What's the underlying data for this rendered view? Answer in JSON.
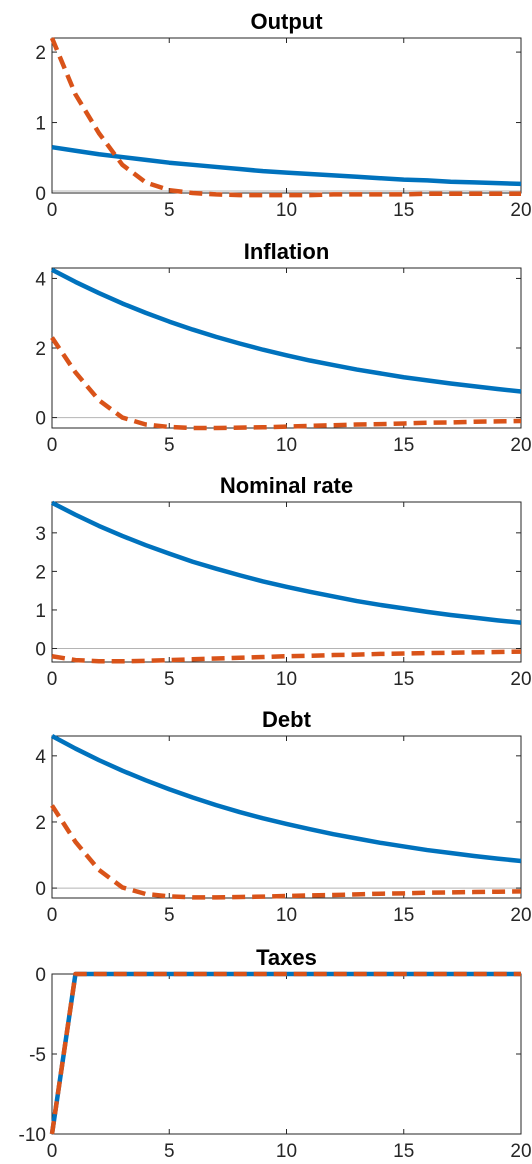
{
  "chart_data": [
    {
      "type": "line",
      "title": "Output",
      "xlabel": "",
      "ylabel": "",
      "xlim": [
        0,
        20
      ],
      "ylim": [
        0,
        2.2
      ],
      "xticks": [
        0,
        5,
        10,
        15,
        20
      ],
      "yticks": [
        0,
        1,
        2
      ],
      "zero_line": true,
      "x": [
        0,
        1,
        2,
        3,
        4,
        5,
        6,
        7,
        8,
        9,
        10,
        11,
        12,
        13,
        14,
        15,
        16,
        17,
        18,
        19,
        20
      ],
      "series": [
        {
          "style": "solid",
          "color": "#0072BD",
          "values": [
            0.65,
            0.6,
            0.55,
            0.51,
            0.47,
            0.43,
            0.4,
            0.37,
            0.34,
            0.31,
            0.29,
            0.27,
            0.25,
            0.23,
            0.21,
            0.19,
            0.18,
            0.16,
            0.15,
            0.14,
            0.13
          ]
        },
        {
          "style": "dashed",
          "color": "#D95319",
          "values": [
            2.2,
            1.4,
            0.85,
            0.4,
            0.15,
            0.04,
            0.0,
            -0.02,
            -0.03,
            -0.03,
            -0.03,
            -0.03,
            -0.02,
            -0.02,
            -0.02,
            -0.02,
            -0.01,
            -0.01,
            -0.01,
            -0.01,
            -0.01
          ]
        }
      ]
    },
    {
      "type": "line",
      "title": "Inflation",
      "xlabel": "",
      "ylabel": "",
      "xlim": [
        0,
        20
      ],
      "ylim": [
        -0.3,
        4.3
      ],
      "xticks": [
        0,
        5,
        10,
        15,
        20
      ],
      "yticks": [
        0,
        2,
        4
      ],
      "zero_line": true,
      "x": [
        0,
        1,
        2,
        3,
        4,
        5,
        6,
        7,
        8,
        9,
        10,
        11,
        12,
        13,
        14,
        15,
        16,
        17,
        18,
        19,
        20
      ],
      "series": [
        {
          "style": "solid",
          "color": "#0072BD",
          "values": [
            4.25,
            3.9,
            3.58,
            3.28,
            3.01,
            2.76,
            2.53,
            2.32,
            2.13,
            1.95,
            1.79,
            1.64,
            1.51,
            1.38,
            1.27,
            1.16,
            1.07,
            0.98,
            0.9,
            0.82,
            0.75
          ]
        },
        {
          "style": "dashed",
          "color": "#D95319",
          "values": [
            2.3,
            1.3,
            0.5,
            0.0,
            -0.2,
            -0.27,
            -0.3,
            -0.3,
            -0.29,
            -0.28,
            -0.26,
            -0.24,
            -0.22,
            -0.2,
            -0.19,
            -0.17,
            -0.15,
            -0.14,
            -0.12,
            -0.11,
            -0.1
          ]
        }
      ]
    },
    {
      "type": "line",
      "title": "Nominal rate",
      "xlabel": "",
      "ylabel": "",
      "xlim": [
        0,
        20
      ],
      "ylim": [
        -0.35,
        3.8
      ],
      "xticks": [
        0,
        5,
        10,
        15,
        20
      ],
      "yticks": [
        0,
        1,
        2,
        3
      ],
      "zero_line": true,
      "x": [
        0,
        1,
        2,
        3,
        4,
        5,
        6,
        7,
        8,
        9,
        10,
        11,
        12,
        13,
        14,
        15,
        16,
        17,
        18,
        19,
        20
      ],
      "series": [
        {
          "style": "solid",
          "color": "#0072BD",
          "values": [
            3.78,
            3.47,
            3.18,
            2.92,
            2.68,
            2.46,
            2.25,
            2.07,
            1.9,
            1.74,
            1.6,
            1.47,
            1.35,
            1.23,
            1.13,
            1.04,
            0.95,
            0.87,
            0.8,
            0.73,
            0.67
          ]
        },
        {
          "style": "dashed",
          "color": "#D95319",
          "values": [
            -0.2,
            -0.3,
            -0.33,
            -0.33,
            -0.32,
            -0.3,
            -0.28,
            -0.26,
            -0.24,
            -0.22,
            -0.2,
            -0.19,
            -0.17,
            -0.16,
            -0.14,
            -0.13,
            -0.12,
            -0.11,
            -0.1,
            -0.09,
            -0.08
          ]
        }
      ]
    },
    {
      "type": "line",
      "title": "Debt",
      "xlabel": "",
      "ylabel": "",
      "xlim": [
        0,
        20
      ],
      "ylim": [
        -0.3,
        4.6
      ],
      "xticks": [
        0,
        5,
        10,
        15,
        20
      ],
      "yticks": [
        0,
        2,
        4
      ],
      "zero_line": true,
      "x": [
        0,
        1,
        2,
        3,
        4,
        5,
        6,
        7,
        8,
        9,
        10,
        11,
        12,
        13,
        14,
        15,
        16,
        17,
        18,
        19,
        20
      ],
      "series": [
        {
          "style": "solid",
          "color": "#0072BD",
          "values": [
            4.6,
            4.22,
            3.87,
            3.55,
            3.26,
            2.99,
            2.74,
            2.51,
            2.3,
            2.11,
            1.94,
            1.78,
            1.63,
            1.5,
            1.37,
            1.26,
            1.15,
            1.06,
            0.97,
            0.89,
            0.82
          ]
        },
        {
          "style": "dashed",
          "color": "#D95319",
          "values": [
            2.5,
            1.4,
            0.55,
            0.02,
            -0.18,
            -0.25,
            -0.28,
            -0.28,
            -0.27,
            -0.26,
            -0.24,
            -0.22,
            -0.21,
            -0.19,
            -0.17,
            -0.16,
            -0.14,
            -0.13,
            -0.12,
            -0.11,
            -0.1
          ]
        }
      ]
    },
    {
      "type": "line",
      "title": "Taxes",
      "xlabel": "",
      "ylabel": "",
      "xlim": [
        0,
        20
      ],
      "ylim": [
        -10,
        0
      ],
      "xticks": [
        0,
        5,
        10,
        15,
        20
      ],
      "yticks": [
        -10,
        -5,
        0
      ],
      "zero_line": false,
      "x": [
        0,
        1,
        2,
        3,
        4,
        5,
        6,
        7,
        8,
        9,
        10,
        11,
        12,
        13,
        14,
        15,
        16,
        17,
        18,
        19,
        20
      ],
      "series": [
        {
          "style": "solid",
          "color": "#0072BD",
          "values": [
            -10,
            0,
            0,
            0,
            0,
            0,
            0,
            0,
            0,
            0,
            0,
            0,
            0,
            0,
            0,
            0,
            0,
            0,
            0,
            0,
            0
          ]
        },
        {
          "style": "dashed",
          "color": "#D95319",
          "values": [
            -10,
            0,
            0,
            0,
            0,
            0,
            0,
            0,
            0,
            0,
            0,
            0,
            0,
            0,
            0,
            0,
            0,
            0,
            0,
            0,
            0
          ]
        }
      ]
    }
  ]
}
